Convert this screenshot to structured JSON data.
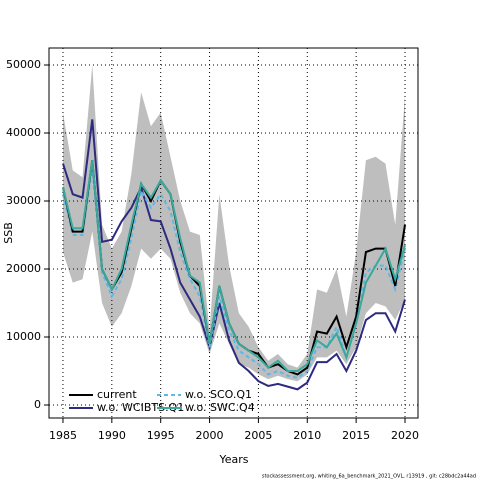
{
  "chart_data": {
    "type": "line",
    "xlabel": "Years",
    "ylabel": "SSB",
    "footer": "stockassessment.org, whiting_6a_benchmark_2021_OVL, r13919 , git: c28bdc2a44ad",
    "x": [
      1985,
      1986,
      1987,
      1988,
      1989,
      1990,
      1991,
      1992,
      1993,
      1994,
      1995,
      1996,
      1997,
      1998,
      1999,
      2000,
      2001,
      2002,
      2003,
      2004,
      2005,
      2006,
      2007,
      2008,
      2009,
      2010,
      2011,
      2012,
      2013,
      2014,
      2015,
      2016,
      2017,
      2018,
      2019,
      2020
    ],
    "band": {
      "color": "#bebebe",
      "lower": [
        22500,
        18000,
        18500,
        25500,
        15000,
        11500,
        13500,
        17500,
        23000,
        21500,
        23000,
        21500,
        16500,
        13500,
        12000,
        7500,
        12000,
        9000,
        6000,
        5500,
        4500,
        3800,
        4300,
        3800,
        3500,
        4500,
        7000,
        7000,
        8000,
        6000,
        8500,
        13500,
        15000,
        14500,
        12500,
        15500
      ],
      "upper": [
        43000,
        34500,
        33500,
        50000,
        26500,
        23000,
        25500,
        34000,
        46000,
        41000,
        43000,
        36500,
        30000,
        25500,
        25000,
        11000,
        31000,
        20500,
        13500,
        11500,
        8500,
        6500,
        7500,
        6000,
        5500,
        7500,
        17000,
        16500,
        20000,
        13000,
        22500,
        36000,
        36500,
        35500,
        26500,
        45500
      ]
    },
    "series": [
      {
        "name": "w.o. WCIBTS.Q1",
        "color": "#2e2a80",
        "linestyle": "solid",
        "values": [
          35500,
          31000,
          30500,
          42000,
          24000,
          24300,
          27000,
          29000,
          32000,
          27200,
          27000,
          23000,
          18000,
          15500,
          13000,
          8500,
          15000,
          9500,
          6200,
          5000,
          3500,
          2800,
          3100,
          2700,
          2300,
          3300,
          6300,
          6300,
          7500,
          5000,
          8000,
          12500,
          13500,
          13500,
          10800,
          15500
        ]
      },
      {
        "name": "w.o. SCO.Q1",
        "color": "#5cb8e6",
        "linestyle": "dashed",
        "values": [
          31000,
          25000,
          25000,
          35000,
          19500,
          16000,
          18500,
          24500,
          31500,
          29000,
          31000,
          28500,
          22500,
          18500,
          16000,
          8500,
          16000,
          11000,
          8000,
          7000,
          6000,
          4500,
          5000,
          4300,
          4000,
          5000,
          8500,
          8500,
          11500,
          7000,
          12000,
          19500,
          20500,
          20500,
          17000,
          23000
        ]
      },
      {
        "name": "current",
        "color": "#000000",
        "linestyle": "solid",
        "values": [
          32000,
          25500,
          25500,
          36000,
          20000,
          17000,
          19500,
          26000,
          32500,
          30000,
          33000,
          31000,
          24000,
          19000,
          17500,
          9000,
          17500,
          12000,
          9000,
          8000,
          7500,
          5500,
          6000,
          5000,
          4500,
          5500,
          10800,
          10500,
          13000,
          8500,
          13000,
          22500,
          23000,
          23000,
          17500,
          26500
        ]
      },
      {
        "name": "w.o. SWC.Q4",
        "color": "#3aa89a",
        "linestyle": "solid",
        "values": [
          32000,
          26000,
          26000,
          36000,
          20000,
          17000,
          20000,
          26500,
          32500,
          30500,
          33000,
          31000,
          24500,
          19000,
          18000,
          9000,
          17500,
          12000,
          9000,
          8000,
          7000,
          5500,
          6500,
          5000,
          5000,
          6000,
          9500,
          8500,
          10500,
          7000,
          12000,
          18000,
          20500,
          23000,
          18500,
          23500
        ]
      }
    ],
    "legend_order": [
      2,
      0,
      1,
      3
    ],
    "xlim": [
      1983.57,
      2021.33
    ],
    "ylim": [
      -1912,
      52500
    ],
    "xticks": [
      1985,
      1990,
      1995,
      2000,
      2005,
      2010,
      2015,
      2020
    ],
    "yticks": [
      0,
      10000,
      20000,
      30000,
      40000,
      50000
    ],
    "grid": true,
    "legend": "bottom-left"
  }
}
